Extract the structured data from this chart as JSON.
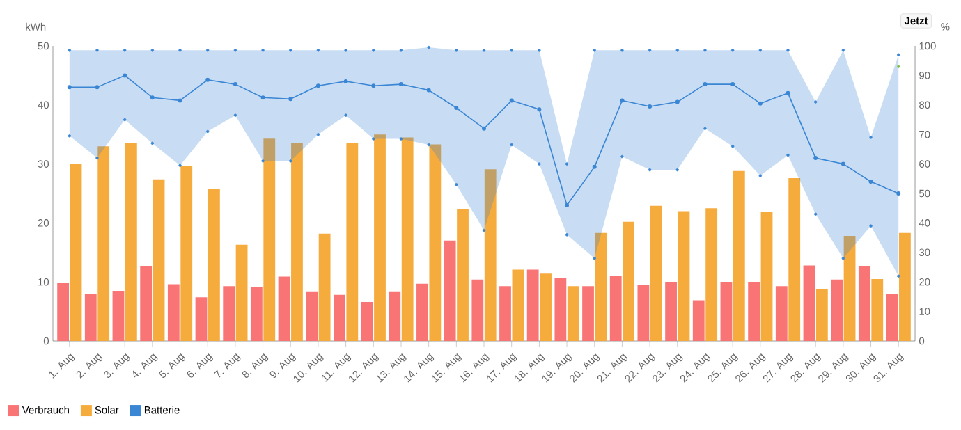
{
  "chart_data": {
    "type": "bar",
    "categories": [
      "1. Aug",
      "2. Aug",
      "3. Aug",
      "4. Aug",
      "5. Aug",
      "6. Aug",
      "7. Aug",
      "8. Aug",
      "9. Aug",
      "10. Aug",
      "11. Aug",
      "12. Aug",
      "13. Aug",
      "14. Aug",
      "15. Aug",
      "16. Aug",
      "17. Aug",
      "18. Aug",
      "19. Aug",
      "20. Aug",
      "21. Aug",
      "22. Aug",
      "23. Aug",
      "24. Aug",
      "25. Aug",
      "26. Aug",
      "27. Aug",
      "28. Aug",
      "29. Aug",
      "30. Aug",
      "31. Aug"
    ],
    "series": [
      {
        "name": "Verbrauch",
        "color": "#f96e6e",
        "values": [
          9.8,
          8.0,
          8.5,
          12.7,
          9.6,
          7.4,
          9.3,
          9.1,
          10.9,
          8.4,
          7.8,
          6.6,
          8.4,
          9.7,
          17.0,
          10.4,
          9.3,
          12.1,
          10.7,
          9.3,
          11.0,
          9.5,
          10.0,
          6.9,
          9.9,
          9.9,
          9.3,
          12.8,
          10.4,
          12.7,
          7.9
        ]
      },
      {
        "name": "Solar",
        "color": "#f5a633",
        "values": [
          30.0,
          33.0,
          33.5,
          27.4,
          29.6,
          25.8,
          16.3,
          34.3,
          33.5,
          18.2,
          33.5,
          35.0,
          34.5,
          33.3,
          22.3,
          29.1,
          12.1,
          11.4,
          9.3,
          18.3,
          20.2,
          22.9,
          22.0,
          22.5,
          28.8,
          21.9,
          27.6,
          8.8,
          17.8,
          10.5,
          18.3
        ]
      },
      {
        "name": "Batterie",
        "type": "line",
        "axis": "y2",
        "color": "#3a86d4",
        "values": [
          86,
          86,
          90,
          82.5,
          81.5,
          88.5,
          87,
          82.5,
          82,
          86.5,
          88,
          86.5,
          87,
          85,
          79,
          72,
          81.5,
          78.5,
          46,
          59,
          81.5,
          79.5,
          81,
          87,
          87,
          80.5,
          84,
          62,
          60,
          54,
          50
        ],
        "lower": [
          69.5,
          62,
          75,
          67,
          59.5,
          71,
          76.5,
          61,
          61,
          70,
          76.5,
          68.5,
          68.5,
          66.5,
          53,
          37.5,
          66.5,
          60,
          36,
          28,
          62.5,
          58,
          58,
          72,
          66,
          56,
          63,
          43,
          28,
          39,
          22
        ],
        "upper": [
          98.5,
          98.5,
          98.5,
          98.5,
          98.5,
          98.5,
          98.5,
          98.5,
          98.5,
          98.5,
          98.5,
          98.5,
          98.5,
          99.5,
          98.5,
          98.5,
          98.5,
          98.5,
          60,
          98.5,
          98.5,
          98.5,
          98.5,
          98.5,
          98.5,
          98.5,
          98.5,
          81,
          98.5,
          69,
          97
        ]
      },
      {
        "type": "scatter",
        "axis": "y2",
        "color": "#3a86d4",
        "values": [
          98.5,
          98.5,
          98.5,
          98.5,
          98.5,
          98.5,
          98.5,
          98.5,
          98.5,
          98.5,
          98.5,
          98.5,
          98.5,
          99.5,
          98.5,
          98.5,
          98.5,
          98.5,
          60,
          98.5,
          98.5,
          98.5,
          98.5,
          98.5,
          98.5,
          98.5,
          98.5,
          81,
          98.5,
          69,
          97
        ]
      },
      {
        "type": "scatter",
        "axis": "y2",
        "color": "#3a86d4",
        "values": [
          69.5,
          62,
          75,
          67,
          59.5,
          71,
          76.5,
          61,
          61,
          70,
          76.5,
          68.5,
          68.5,
          66.5,
          53,
          37.5,
          66.5,
          60,
          36,
          28,
          62.5,
          58,
          58,
          72,
          66,
          56,
          63,
          43,
          28,
          39,
          22
        ]
      },
      {
        "type": "scatter",
        "axis": "y2",
        "color": "#7dc142",
        "values": [
          null,
          null,
          null,
          null,
          null,
          null,
          null,
          null,
          null,
          null,
          null,
          null,
          null,
          null,
          null,
          null,
          null,
          null,
          null,
          null,
          null,
          null,
          null,
          null,
          null,
          null,
          null,
          null,
          null,
          null,
          93
        ]
      }
    ],
    "ylabel": "kWh",
    "y2label": "%",
    "ylim": [
      0,
      50
    ],
    "yticks": [
      0,
      10,
      20,
      30,
      40,
      50
    ],
    "y2lim": [
      0,
      100
    ],
    "y2ticks": [
      0,
      10,
      20,
      30,
      40,
      50,
      60,
      70,
      80,
      90,
      100
    ],
    "marker": "circle",
    "legend": "bottom left",
    "annotations": [
      "Jetzt"
    ]
  }
}
